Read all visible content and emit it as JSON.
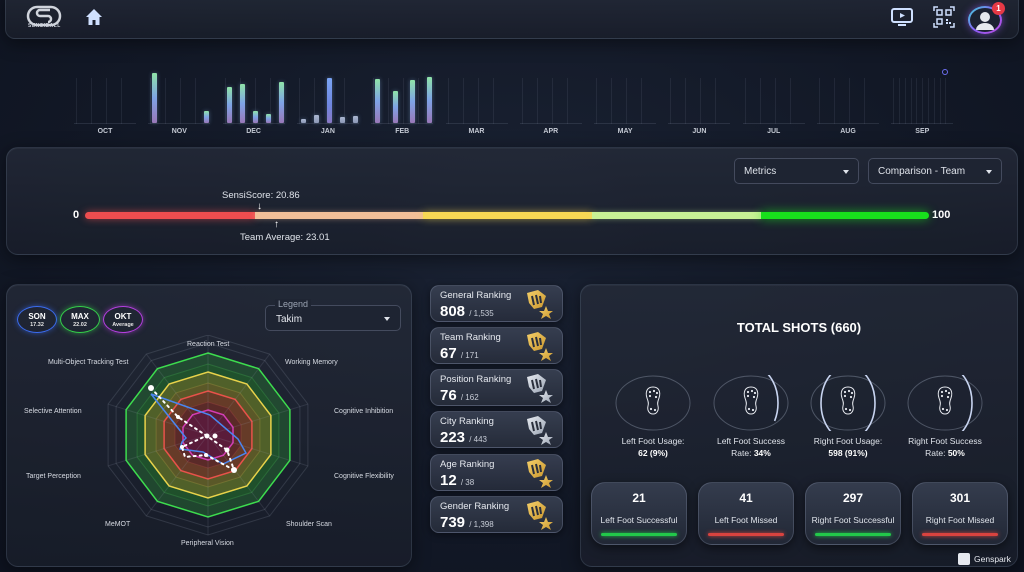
{
  "header": {
    "logo_text": "SENSIBALL",
    "icons": [
      "home-icon",
      "video-icon",
      "qr-code-icon",
      "profile-icon"
    ],
    "notification_count": "1"
  },
  "timeline": {
    "months": [
      {
        "label": "OCT",
        "bars": []
      },
      {
        "label": "NOV",
        "bars": [
          50,
          0,
          0,
          12
        ]
      },
      {
        "label": "DEC",
        "bars": [
          36,
          39,
          12,
          9,
          41
        ]
      },
      {
        "label": "JAN",
        "bars": [
          4,
          8,
          45,
          6,
          7
        ]
      },
      {
        "label": "FEB",
        "bars": [
          44,
          32,
          43,
          46
        ]
      },
      {
        "label": "MAR",
        "bars": []
      },
      {
        "label": "APR",
        "bars": []
      },
      {
        "label": "MAY",
        "bars": []
      },
      {
        "label": "JUN",
        "bars": []
      },
      {
        "label": "JUL",
        "bars": []
      },
      {
        "label": "AUG",
        "bars": []
      },
      {
        "label": "SEP",
        "bars": []
      }
    ]
  },
  "score": {
    "min_label": "0",
    "max_label": "100",
    "sensiscore_label": "SensiScore: 20.86",
    "team_average_label": "Team Average: 23.01",
    "metrics_select": "Metrics",
    "comparison_select": "Comparison - Team",
    "segment_colors": [
      "#ee4d4f",
      "#f2bf98",
      "#f7d854",
      "#c8f195",
      "#18e01c"
    ]
  },
  "radar": {
    "pills": [
      {
        "title": "SON",
        "sub": "17.32",
        "color": "#3b6cf0"
      },
      {
        "title": "MAX",
        "sub": "22.02",
        "color": "#35d04a"
      },
      {
        "title": "OKT",
        "sub": "Average",
        "color": "#b53fe0"
      }
    ],
    "legend_label": "Legend",
    "legend_value": "Takim",
    "axes": [
      "Reaction Test",
      "Working Memory",
      "Cognitive Inhibition",
      "Cognitive Flexibility",
      "Shoulder Scan",
      "Peripheral Vision",
      "MeMOT",
      "Target Perception",
      "Selective Attention",
      "Multi-Object Tracking Test"
    ]
  },
  "rankings": [
    {
      "title": "General Ranking",
      "rank": "808",
      "total": "/ 1,535",
      "medal": "gold"
    },
    {
      "title": "Team Ranking",
      "rank": "67",
      "total": "/ 171",
      "medal": "gold"
    },
    {
      "title": "Position Ranking",
      "rank": "76",
      "total": "/ 162",
      "medal": "silver"
    },
    {
      "title": "City Ranking",
      "rank": "223",
      "total": "/ 443",
      "medal": "silver"
    },
    {
      "title": "Age Ranking",
      "rank": "12",
      "total": "/ 38",
      "medal": "gold"
    },
    {
      "title": "Gender Ranking",
      "rank": "739",
      "total": "/ 1,398",
      "medal": "gold"
    }
  ],
  "shots": {
    "title": "TOTAL SHOTS (660)",
    "feet": [
      {
        "line1": "Left Foot Usage:",
        "line2": "62 (9%)"
      },
      {
        "line1": "Left Foot Success",
        "line2_prefix": "Rate: ",
        "line2": "34%"
      },
      {
        "line1": "Right Foot Usage:",
        "line2": "598 (91%)"
      },
      {
        "line1": "Right Foot Success",
        "line2_prefix": "Rate: ",
        "line2": "50%"
      }
    ],
    "stats": [
      {
        "value": "21",
        "label": "Left Foot Successful",
        "color": "#22c84a"
      },
      {
        "value": "41",
        "label": "Left Foot Missed",
        "color": "#d9433f"
      },
      {
        "value": "297",
        "label": "Right Foot Successful",
        "color": "#22c84a"
      },
      {
        "value": "301",
        "label": "Right Foot Missed",
        "color": "#d9433f"
      }
    ]
  },
  "watermark": "Genspark"
}
